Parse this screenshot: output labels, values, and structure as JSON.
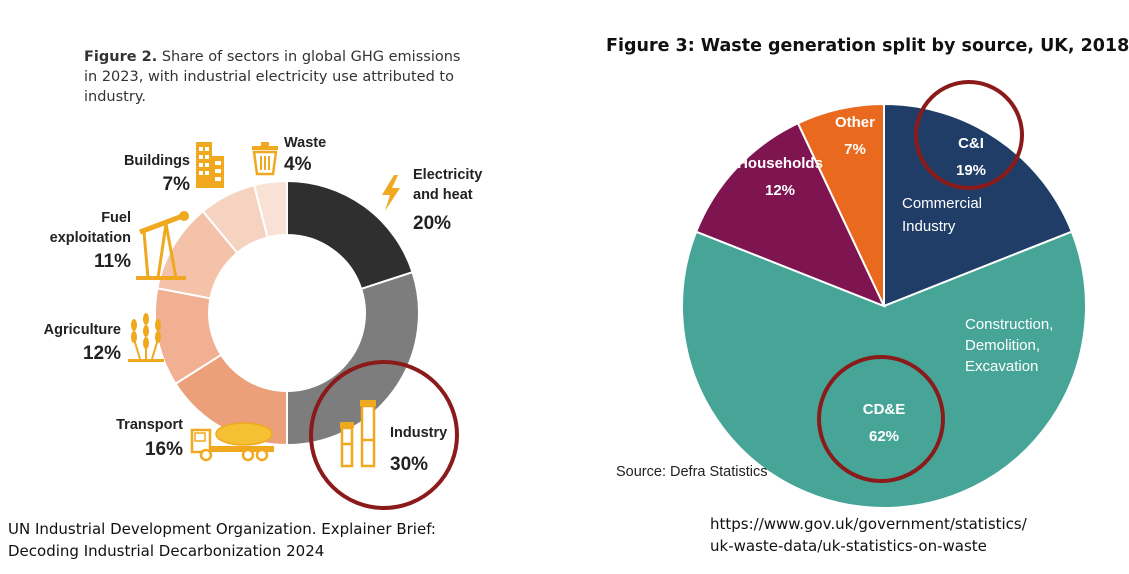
{
  "left": {
    "caption_bold": "Figure 2.",
    "caption_rest": " Share of sectors in global GHG emissions in 2023, with industrial electricity use attributed to industry.",
    "citation_line1": "UN Industrial Development Organization. Explainer Brief:",
    "citation_line2": "Decoding Industrial Decarbonization 2024"
  },
  "right": {
    "title": "Figure 3: Waste generation split by source, UK, 2018",
    "source": "Source: Defra Statistics",
    "link_line1": "https://www.gov.uk/government/statistics/",
    "link_line2": "uk-waste-data/uk-statistics-on-waste",
    "labels": {
      "ci_desc_1": "Commercial",
      "ci_desc_2": "Industry",
      "cde_desc_1": "Construction,",
      "cde_desc_2": "Demolition,",
      "cde_desc_3": "Excavation"
    }
  },
  "chart_data": [
    {
      "type": "pie",
      "variant": "donut",
      "categories": [
        "Electricity and heat",
        "Industry",
        "Transport",
        "Agriculture",
        "Fuel exploitation",
        "Buildings",
        "Waste"
      ],
      "values": [
        20,
        30,
        16,
        12,
        11,
        7,
        4
      ],
      "value_labels": [
        "20%",
        "30%",
        "16%",
        "12%",
        "11%",
        "7%",
        "4%"
      ],
      "label_lines": [
        [
          "Electricity",
          "and heat"
        ],
        [
          "Industry"
        ],
        [
          "Transport"
        ],
        [
          "Agriculture"
        ],
        [
          "Fuel",
          "exploitation"
        ],
        [
          "Buildings"
        ],
        [
          "Waste"
        ]
      ],
      "colors": [
        "#2f2f2f",
        "#7d7d7d",
        "#eba07a",
        "#f0b091",
        "#f3c2a8",
        "#f6d3c1",
        "#f9e1d6"
      ],
      "icons": [
        "lightning-icon",
        "factory-chimneys-icon",
        "cement-truck-icon",
        "wheat-icon",
        "oil-pump-icon",
        "building-icon",
        "trash-can-icon"
      ],
      "highlight": "Industry",
      "highlight_color": "#8b1a1a"
    },
    {
      "type": "pie",
      "categories": [
        "C&I",
        "CD&E",
        "Households",
        "Other"
      ],
      "values": [
        19,
        62,
        12,
        7
      ],
      "value_labels": [
        "19%",
        "62%",
        "12%",
        "7%"
      ],
      "colors": [
        "#1f3d66",
        "#46a597",
        "#7f1550",
        "#e96a1f"
      ],
      "highlight": [
        "C&I",
        "CD&E"
      ],
      "highlight_color": "#8b1a1a"
    }
  ]
}
